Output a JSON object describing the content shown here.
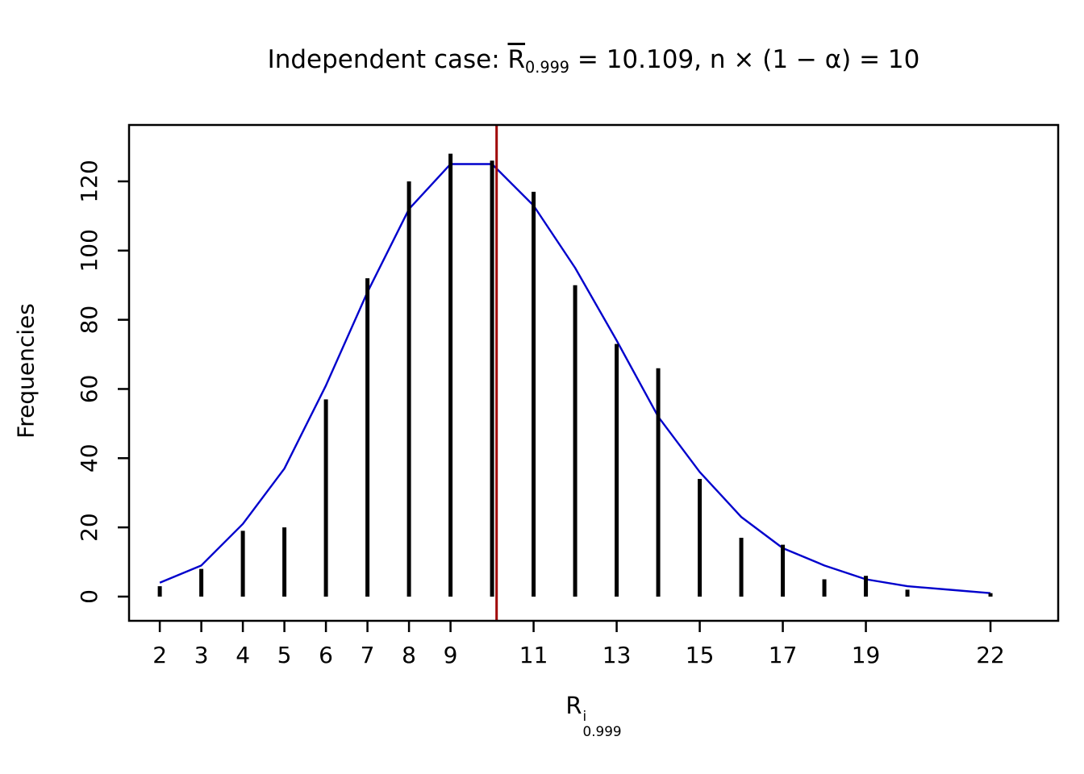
{
  "title": {
    "prefix": "Independent case: ",
    "r_base": "R",
    "r_sub": "0.999",
    "suffix": " = 10.109,  n × (1 − α) = 10",
    "plain_text": "Independent case: R̄_0.999 = 10.109, n × (1 − α) = 10"
  },
  "x_axis": {
    "label_base": "R",
    "label_sup": "i",
    "label_sub": "0.999"
  },
  "y_axis": {
    "label": "Frequencies"
  },
  "chart_data": {
    "type": "bar",
    "variant": "discrete-frequency-spikes-with-fitted-curve",
    "title": "Independent case: R̄_0.999 = 10.109, n × (1 − α) = 10",
    "xlabel": "R^i_0.999",
    "ylabel": "Frequencies",
    "xlim": [
      1.26,
      23.63
    ],
    "ylim": [
      -7,
      136.3
    ],
    "x_ticks": [
      2,
      3,
      4,
      5,
      6,
      7,
      8,
      9,
      11,
      13,
      15,
      17,
      19,
      22
    ],
    "y_ticks": [
      0,
      20,
      40,
      60,
      80,
      100,
      120
    ],
    "grid": false,
    "legend": "none",
    "series": [
      {
        "name": "observed-frequencies",
        "style": "spike",
        "color": "#000000",
        "x": [
          2,
          3,
          4,
          5,
          6,
          7,
          8,
          9,
          10,
          11,
          12,
          13,
          14,
          15,
          16,
          17,
          18,
          19,
          20,
          22
        ],
        "y": [
          3,
          8,
          19,
          20,
          57,
          92,
          120,
          128,
          126,
          117,
          90,
          73,
          66,
          34,
          17,
          15,
          5,
          6,
          2,
          1
        ]
      },
      {
        "name": "fitted-curve",
        "style": "line",
        "color": "#0000CC",
        "x": [
          2,
          3,
          4,
          5,
          6,
          7,
          8,
          9,
          10,
          11,
          12,
          13,
          14,
          15,
          16,
          17,
          18,
          19,
          20,
          21,
          22
        ],
        "y": [
          4,
          9,
          21,
          37,
          61,
          88,
          112,
          125,
          125,
          113,
          95,
          74,
          52,
          36,
          23,
          14,
          9,
          5,
          3,
          2,
          1
        ]
      }
    ],
    "vline": {
      "x": 10.109,
      "color": "#A00000"
    }
  }
}
